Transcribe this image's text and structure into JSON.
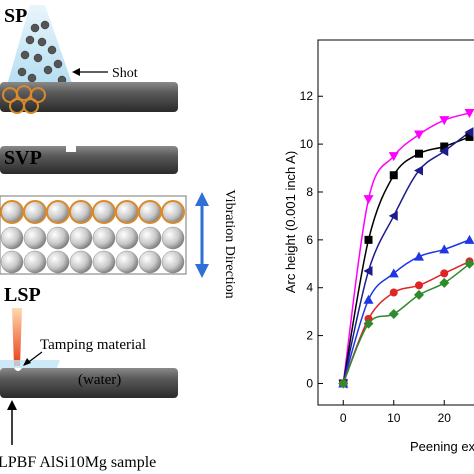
{
  "panels": {
    "sp": {
      "title": "SP",
      "shot_label": "Shot"
    },
    "svp": {
      "title": "SVP",
      "vibration_label": "Vibration Direction"
    },
    "lsp": {
      "title": "LSP",
      "tamping_label": "Tamping material",
      "water_label": "(water)",
      "sample_label": "LPBF AlSi10Mg sample"
    }
  },
  "chart_data": {
    "type": "scatter",
    "ylabel": "Arc height (0.001 inch A)",
    "xlabel": "Peening ex",
    "x": [
      0,
      5,
      10,
      15,
      20,
      25
    ],
    "xlim": [
      -5,
      26
    ],
    "ylim": [
      -0.9,
      14.35
    ],
    "xticks": [
      0,
      10,
      20
    ],
    "yticks": [
      0,
      2,
      4,
      6,
      8,
      10,
      12
    ],
    "series": [
      {
        "color": "#ff00ff",
        "marker": "triangle-down",
        "values": [
          0,
          7.7,
          9.5,
          10.4,
          11.0,
          11.3
        ]
      },
      {
        "color": "#000000",
        "marker": "square",
        "values": [
          0,
          6.0,
          8.7,
          9.6,
          9.9,
          10.3
        ]
      },
      {
        "color": "#1c1c8c",
        "marker": "triangle-left",
        "values": [
          0,
          4.7,
          7.0,
          8.9,
          9.7,
          10.5
        ]
      },
      {
        "color": "#1f35e6",
        "marker": "triangle-up",
        "values": [
          0,
          3.5,
          4.6,
          5.3,
          5.6,
          6.0
        ]
      },
      {
        "color": "#e02525",
        "marker": "circle",
        "values": [
          0,
          2.7,
          3.8,
          4.1,
          4.6,
          5.1
        ]
      },
      {
        "color": "#2e8b2e",
        "marker": "diamond",
        "values": [
          0,
          2.5,
          2.9,
          3.7,
          4.2,
          5.0
        ]
      }
    ]
  }
}
